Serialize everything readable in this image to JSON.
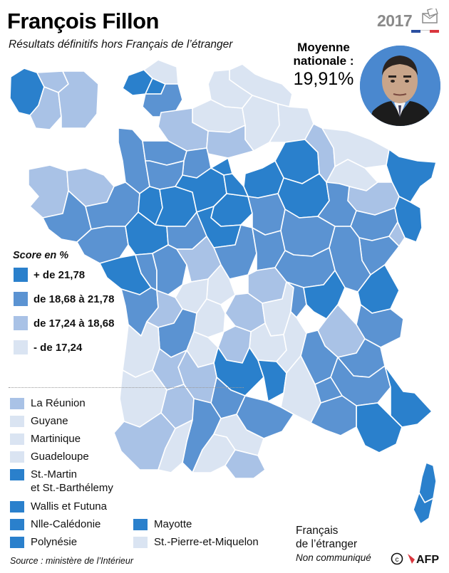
{
  "header": {
    "title": "François Fillon",
    "subtitle": "Résultats définitifs hors Français de l’étranger",
    "badge_year": "2017"
  },
  "national_average": {
    "line1": "Moyenne",
    "line2": "nationale :",
    "value": "19,91%"
  },
  "colors": {
    "class_1": "#2a80cc",
    "class_2": "#5b93d2",
    "class_3": "#a9c2e6",
    "class_4": "#dae4f2",
    "border": "#ffffff",
    "flag_blue": "#2b4fa0",
    "flag_red": "#d9363e"
  },
  "legend": {
    "title": "Score en %",
    "classes": [
      {
        "label": "+ de 21,78",
        "color": "#2a80cc"
      },
      {
        "label": "de 18,68 à 21,78",
        "color": "#5b93d2"
      },
      {
        "label": "de 17,24 à 18,68",
        "color": "#a9c2e6"
      },
      {
        "label": "- de 17,24",
        "color": "#dae4f2"
      }
    ]
  },
  "overseas": [
    {
      "label": "La Réunion",
      "color": "#a9c2e6"
    },
    {
      "label": "Guyane",
      "color": "#dae4f2"
    },
    {
      "label": "Martinique",
      "color": "#dae4f2"
    },
    {
      "label": "Guadeloupe",
      "color": "#dae4f2"
    },
    {
      "label": "St.-Martin",
      "label2": "et St.-Barthélemy",
      "color": "#2a80cc"
    },
    {
      "label": "Wallis et Futuna",
      "color": "#2a80cc"
    },
    {
      "label": "Nlle-Calédonie",
      "color": "#2a80cc"
    },
    {
      "label": "Polynésie",
      "color": "#2a80cc"
    },
    {
      "label": "Mayotte",
      "color": "#2a80cc"
    },
    {
      "label": "St.-Pierre-et-Miquelon",
      "color": "#dae4f2"
    }
  ],
  "francais_etranger": {
    "line1": "Français",
    "line2": "de l’étranger",
    "note": "Non communiqué"
  },
  "source": "Source : ministère de l’Intérieur",
  "credit": "AFP"
}
